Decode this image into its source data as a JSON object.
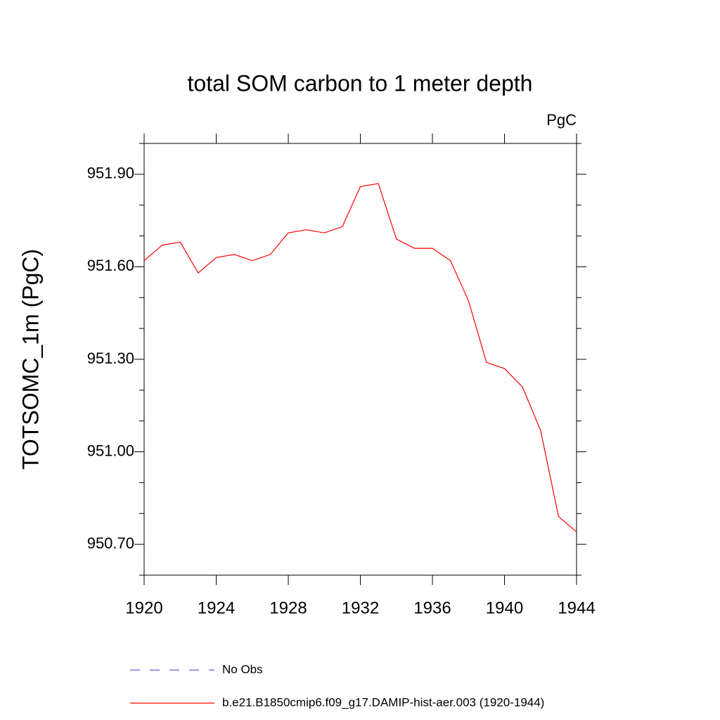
{
  "chart_data": {
    "type": "line",
    "title": "total SOM carbon to 1 meter depth",
    "units_label": "PgC",
    "ylabel": "TOTSOMC_1m  (PgC)",
    "x": [
      1920,
      1921,
      1922,
      1923,
      1924,
      1925,
      1926,
      1927,
      1928,
      1929,
      1930,
      1931,
      1932,
      1933,
      1934,
      1935,
      1936,
      1937,
      1938,
      1939,
      1940,
      1941,
      1942,
      1943,
      1944
    ],
    "series": [
      {
        "name": "No Obs",
        "color": "#6a5acd",
        "dash": true,
        "values": [
          null,
          null,
          null,
          null,
          null,
          null,
          null,
          null,
          null,
          null,
          null,
          null,
          null,
          null,
          null,
          null,
          null,
          null,
          null,
          null,
          null,
          null,
          null,
          null,
          null
        ]
      },
      {
        "name": "b.e21.B1850cmip6.f09_g17.DAMIP-hist-aer.003 (1920-1944)",
        "color": "#ff0000",
        "dash": false,
        "values": [
          951.62,
          951.67,
          951.68,
          951.58,
          951.63,
          951.64,
          951.62,
          951.64,
          951.71,
          951.72,
          951.71,
          951.73,
          951.86,
          951.87,
          951.69,
          951.66,
          951.66,
          951.62,
          951.49,
          951.29,
          951.27,
          951.21,
          951.07,
          950.79,
          950.74
        ]
      }
    ],
    "xlim": [
      1920,
      1944
    ],
    "xticks": [
      1920,
      1924,
      1928,
      1932,
      1936,
      1940,
      1944
    ],
    "ylim": [
      950.6,
      952.0
    ],
    "yticks": [
      {
        "value": 950.7,
        "label": "950.70"
      },
      {
        "value": 951.0,
        "label": "951.00"
      },
      {
        "value": 951.3,
        "label": "951.30"
      },
      {
        "value": 951.6,
        "label": "951.60"
      },
      {
        "value": 951.9,
        "label": "951.90"
      }
    ],
    "yminorticks": [
      950.6,
      950.8,
      950.9,
      951.1,
      951.2,
      951.4,
      951.5,
      951.7,
      951.8,
      952.0
    ],
    "grid": false
  }
}
